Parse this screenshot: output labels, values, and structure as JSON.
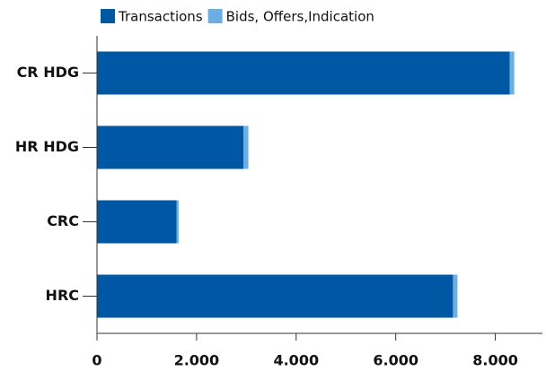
{
  "chart_data": {
    "type": "bar",
    "orientation": "horizontal",
    "stacked": true,
    "categories": [
      "CR HDG",
      "HR HDG",
      "CRC",
      "HRC"
    ],
    "series": [
      {
        "name": "Transactions",
        "color": "#0057a3",
        "values": [
          8290,
          2940,
          1600,
          7150
        ]
      },
      {
        "name": "Bids, Offers,Indication",
        "color": "#6caee0",
        "values": [
          90,
          100,
          40,
          90
        ]
      }
    ],
    "xlim": [
      0,
      9000
    ],
    "xticks": [
      0,
      {
        "value": 2000,
        "label": "2.000"
      },
      {
        "value": 4000,
        "label": "4.000"
      },
      {
        "value": 6000,
        "label": "6.000"
      },
      {
        "value": 8000,
        "label": "8.000"
      }
    ],
    "legend": "top"
  }
}
